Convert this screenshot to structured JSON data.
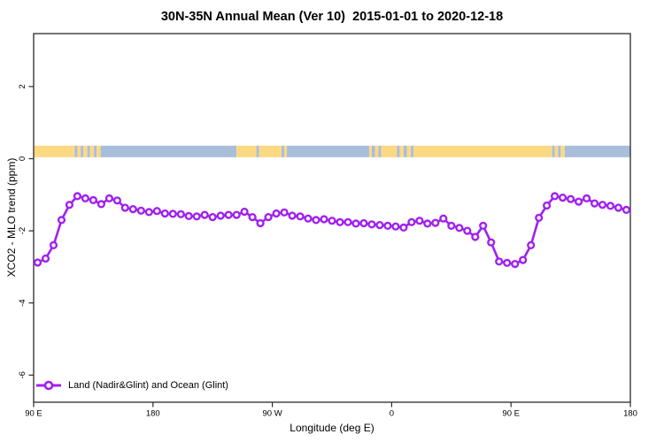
{
  "title": "30N-35N Annual Mean (Ver 10)  2015-01-01 to 2020-12-18",
  "legend": {
    "label": "Land (Nadir&Glint) and Ocean (Glint)",
    "position": "bottom-left"
  },
  "chart_data": {
    "type": "line",
    "title": "30N-35N Annual Mean (Ver 10)  2015-01-01 to 2020-12-18",
    "xlabel": "Longitude (deg E)",
    "ylabel": "XCO2 - MLO trend (ppm)",
    "xlim": [
      90,
      540
    ],
    "ylim": [
      -6.8,
      3.5
    ],
    "grid": false,
    "x_ticks": [
      {
        "value": 90,
        "label": "90 E"
      },
      {
        "value": 180,
        "label": "180"
      },
      {
        "value": 270,
        "label": "90 W"
      },
      {
        "value": 360,
        "label": "0"
      },
      {
        "value": 450,
        "label": "90 E"
      },
      {
        "value": 540,
        "label": "180"
      }
    ],
    "y_ticks": [
      {
        "value": 2,
        "label": "2"
      },
      {
        "value": 0,
        "label": "0"
      },
      {
        "value": -2,
        "label": "-2"
      },
      {
        "value": -4,
        "label": "-4"
      },
      {
        "value": -6,
        "label": "-6"
      }
    ],
    "line_color": "#A020F0",
    "marker": "open-circle",
    "series": [
      {
        "name": "Land (Nadir&Glint) and Ocean (Glint)",
        "x": [
          93,
          99,
          105,
          111,
          117,
          123,
          129,
          135,
          141,
          147,
          153,
          159,
          165,
          171,
          177,
          183,
          189,
          195,
          201,
          207,
          213,
          219,
          225,
          231,
          237,
          243,
          249,
          255,
          261,
          267,
          273,
          279,
          285,
          291,
          297,
          303,
          309,
          315,
          321,
          327,
          333,
          339,
          345,
          351,
          357,
          363,
          369,
          375,
          381,
          387,
          393,
          399,
          405,
          411,
          417,
          423,
          429,
          435,
          441,
          447,
          453,
          459,
          465,
          471,
          477,
          483,
          489,
          495,
          501,
          507,
          513,
          519,
          525,
          531,
          537
        ],
        "y": [
          -2.88,
          -2.77,
          -2.4,
          -1.7,
          -1.28,
          -1.04,
          -1.1,
          -1.15,
          -1.26,
          -1.1,
          -1.16,
          -1.36,
          -1.4,
          -1.44,
          -1.48,
          -1.45,
          -1.52,
          -1.53,
          -1.54,
          -1.59,
          -1.6,
          -1.56,
          -1.62,
          -1.58,
          -1.56,
          -1.56,
          -1.47,
          -1.62,
          -1.79,
          -1.62,
          -1.52,
          -1.49,
          -1.58,
          -1.6,
          -1.66,
          -1.7,
          -1.68,
          -1.72,
          -1.76,
          -1.76,
          -1.8,
          -1.79,
          -1.82,
          -1.84,
          -1.86,
          -1.88,
          -1.91,
          -1.76,
          -1.72,
          -1.8,
          -1.78,
          -1.66,
          -1.86,
          -1.92,
          -2.0,
          -2.17,
          -1.86,
          -2.32,
          -2.85,
          -2.89,
          -2.92,
          -2.81,
          -2.4,
          -1.64,
          -1.3,
          -1.04,
          -1.08,
          -1.12,
          -1.19,
          -1.1,
          -1.24,
          -1.28,
          -1.31,
          -1.36,
          -1.42
        ]
      }
    ],
    "map_strip": {
      "land_color": "#FBD983",
      "ocean_color": "#A9BEDB",
      "y_range": [
        0.04,
        0.36
      ],
      "segments": [
        [
          90,
          121,
          "land"
        ],
        [
          121,
          123,
          "ocean"
        ],
        [
          123,
          125.5,
          "land"
        ],
        [
          125.5,
          127.5,
          "ocean"
        ],
        [
          127.5,
          130.5,
          "land"
        ],
        [
          130.5,
          132.5,
          "ocean"
        ],
        [
          132.5,
          135.5,
          "land"
        ],
        [
          135.5,
          137.5,
          "ocean"
        ],
        [
          137.5,
          140.5,
          "land"
        ],
        [
          140.5,
          243,
          "ocean"
        ],
        [
          243,
          258,
          "land"
        ],
        [
          258,
          260,
          "ocean"
        ],
        [
          260,
          277,
          "land"
        ],
        [
          277,
          279,
          "ocean"
        ],
        [
          279,
          281,
          "land"
        ],
        [
          281,
          343,
          "ocean"
        ],
        [
          343,
          345,
          "land"
        ],
        [
          345,
          347.5,
          "ocean"
        ],
        [
          347.5,
          350,
          "land"
        ],
        [
          350,
          352,
          "ocean"
        ],
        [
          352,
          364,
          "land"
        ],
        [
          364,
          366,
          "ocean"
        ],
        [
          366,
          369,
          "land"
        ],
        [
          369,
          371.5,
          "ocean"
        ],
        [
          371.5,
          374.5,
          "land"
        ],
        [
          374.5,
          376.5,
          "ocean"
        ],
        [
          376.5,
          481,
          "land"
        ],
        [
          481,
          483,
          "ocean"
        ],
        [
          483,
          485.5,
          "land"
        ],
        [
          485.5,
          487.5,
          "ocean"
        ],
        [
          487.5,
          490.5,
          "land"
        ],
        [
          490.5,
          540,
          "ocean"
        ]
      ]
    }
  }
}
